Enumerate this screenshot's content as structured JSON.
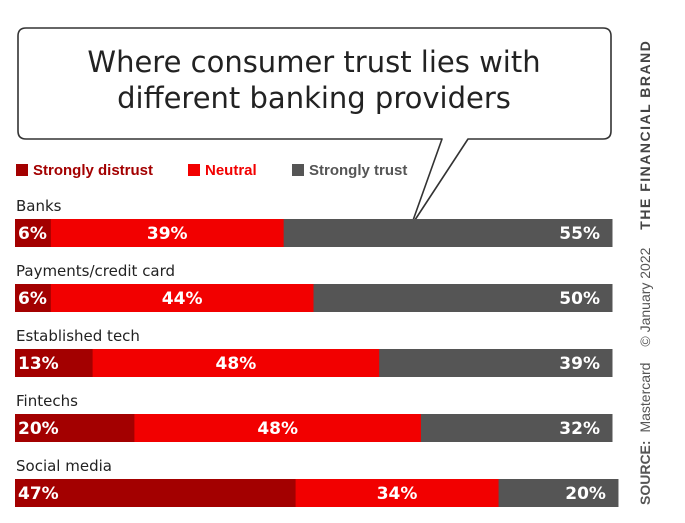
{
  "chart_data": {
    "type": "bar",
    "orientation": "horizontal",
    "stacked": true,
    "title": "Where consumer trust lies with different banking providers",
    "categories": [
      "Banks",
      "Payments/credit card",
      "Established tech",
      "Fintechs",
      "Social media"
    ],
    "series": [
      {
        "name": "Strongly distrust",
        "color": "#a30000",
        "values": [
          6,
          6,
          13,
          20,
          47
        ]
      },
      {
        "name": "Neutral",
        "color": "#f20000",
        "values": [
          39,
          44,
          48,
          48,
          34
        ]
      },
      {
        "name": "Strongly trust",
        "color": "#555555",
        "values": [
          55,
          50,
          39,
          32,
          20
        ]
      }
    ],
    "value_suffix": "%",
    "legend_position": "top-left"
  },
  "title_lines": [
    "Where consumer trust lies with",
    "different banking providers"
  ],
  "side": {
    "source_label": "SOURCE:",
    "source_value": "Mastercard",
    "copyright": "© January 2022",
    "brand": "THE FINANCIAL BRAND"
  }
}
